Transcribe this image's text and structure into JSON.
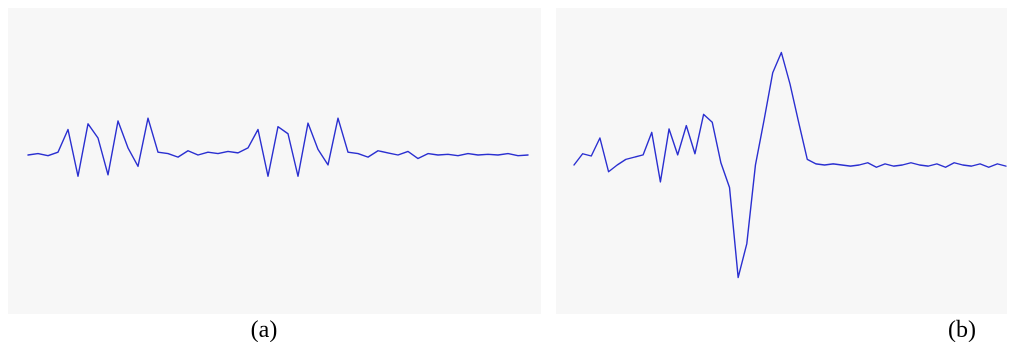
{
  "captions": {
    "a": "(a)",
    "b": "(b)"
  },
  "colors": {
    "panel_background": "#f7f7f7",
    "trace": "#2a2fd0"
  },
  "chart_data": [
    {
      "type": "line",
      "title": "",
      "xlabel": "",
      "ylabel": "",
      "x": [
        0.0,
        0.02,
        0.04,
        0.06,
        0.08,
        0.1,
        0.12,
        0.14,
        0.16,
        0.18,
        0.2,
        0.22,
        0.24,
        0.26,
        0.28,
        0.3,
        0.32,
        0.34,
        0.36,
        0.38,
        0.4,
        0.42,
        0.44,
        0.46,
        0.48,
        0.5,
        0.52,
        0.54,
        0.56,
        0.58,
        0.6,
        0.62,
        0.64,
        0.66,
        0.68,
        0.7,
        0.72,
        0.74,
        0.76,
        0.78,
        0.8,
        0.82,
        0.84,
        0.86,
        0.88,
        0.9,
        0.92,
        0.94,
        0.96,
        0.98,
        1.0
      ],
      "series": [
        {
          "values": [
            0.0,
            0.02,
            -0.01,
            0.04,
            0.36,
            -0.3,
            0.44,
            0.24,
            -0.28,
            0.48,
            0.1,
            -0.16,
            0.52,
            0.04,
            0.02,
            -0.03,
            0.06,
            0.0,
            0.04,
            0.02,
            0.05,
            0.03,
            0.1,
            0.36,
            -0.3,
            0.4,
            0.3,
            -0.3,
            0.45,
            0.08,
            -0.14,
            0.52,
            0.04,
            0.02,
            -0.03,
            0.06,
            0.03,
            0.0,
            0.05,
            -0.05,
            0.02,
            0.0,
            0.01,
            -0.01,
            0.02,
            0.0,
            0.01,
            0.0,
            0.02,
            -0.01,
            0.0
          ]
        }
      ],
      "ylim": [
        -1.2,
        1.2
      ],
      "xlim": [
        0,
        1
      ],
      "grid": false
    },
    {
      "type": "line",
      "title": "",
      "xlabel": "",
      "ylabel": "",
      "x": [
        0.0,
        0.02,
        0.04,
        0.06,
        0.08,
        0.1,
        0.12,
        0.14,
        0.16,
        0.18,
        0.2,
        0.22,
        0.24,
        0.26,
        0.28,
        0.3,
        0.32,
        0.34,
        0.36,
        0.38,
        0.4,
        0.42,
        0.44,
        0.46,
        0.48,
        0.5,
        0.52,
        0.54,
        0.56,
        0.58,
        0.6,
        0.62,
        0.64,
        0.66,
        0.68,
        0.7,
        0.72,
        0.74,
        0.76,
        0.78,
        0.8,
        0.82,
        0.84,
        0.86,
        0.88,
        0.9,
        0.92,
        0.94,
        0.96,
        0.98,
        1.0
      ],
      "series": [
        {
          "values": [
            0.0,
            0.1,
            0.08,
            0.24,
            -0.06,
            0.0,
            0.05,
            0.07,
            0.09,
            0.29,
            -0.15,
            0.32,
            0.09,
            0.35,
            0.1,
            0.45,
            0.38,
            0.02,
            -0.2,
            -1.0,
            -0.7,
            0.0,
            0.4,
            0.82,
            1.0,
            0.72,
            0.38,
            0.05,
            0.01,
            0.0,
            0.01,
            0.0,
            -0.01,
            0.0,
            0.02,
            -0.02,
            0.01,
            -0.01,
            0.0,
            0.02,
            0.0,
            -0.01,
            0.01,
            -0.02,
            0.02,
            0.0,
            -0.01,
            0.01,
            -0.02,
            0.01,
            -0.01
          ]
        }
      ],
      "ylim": [
        -1.2,
        1.2
      ],
      "xlim": [
        0,
        1
      ],
      "grid": false
    }
  ]
}
